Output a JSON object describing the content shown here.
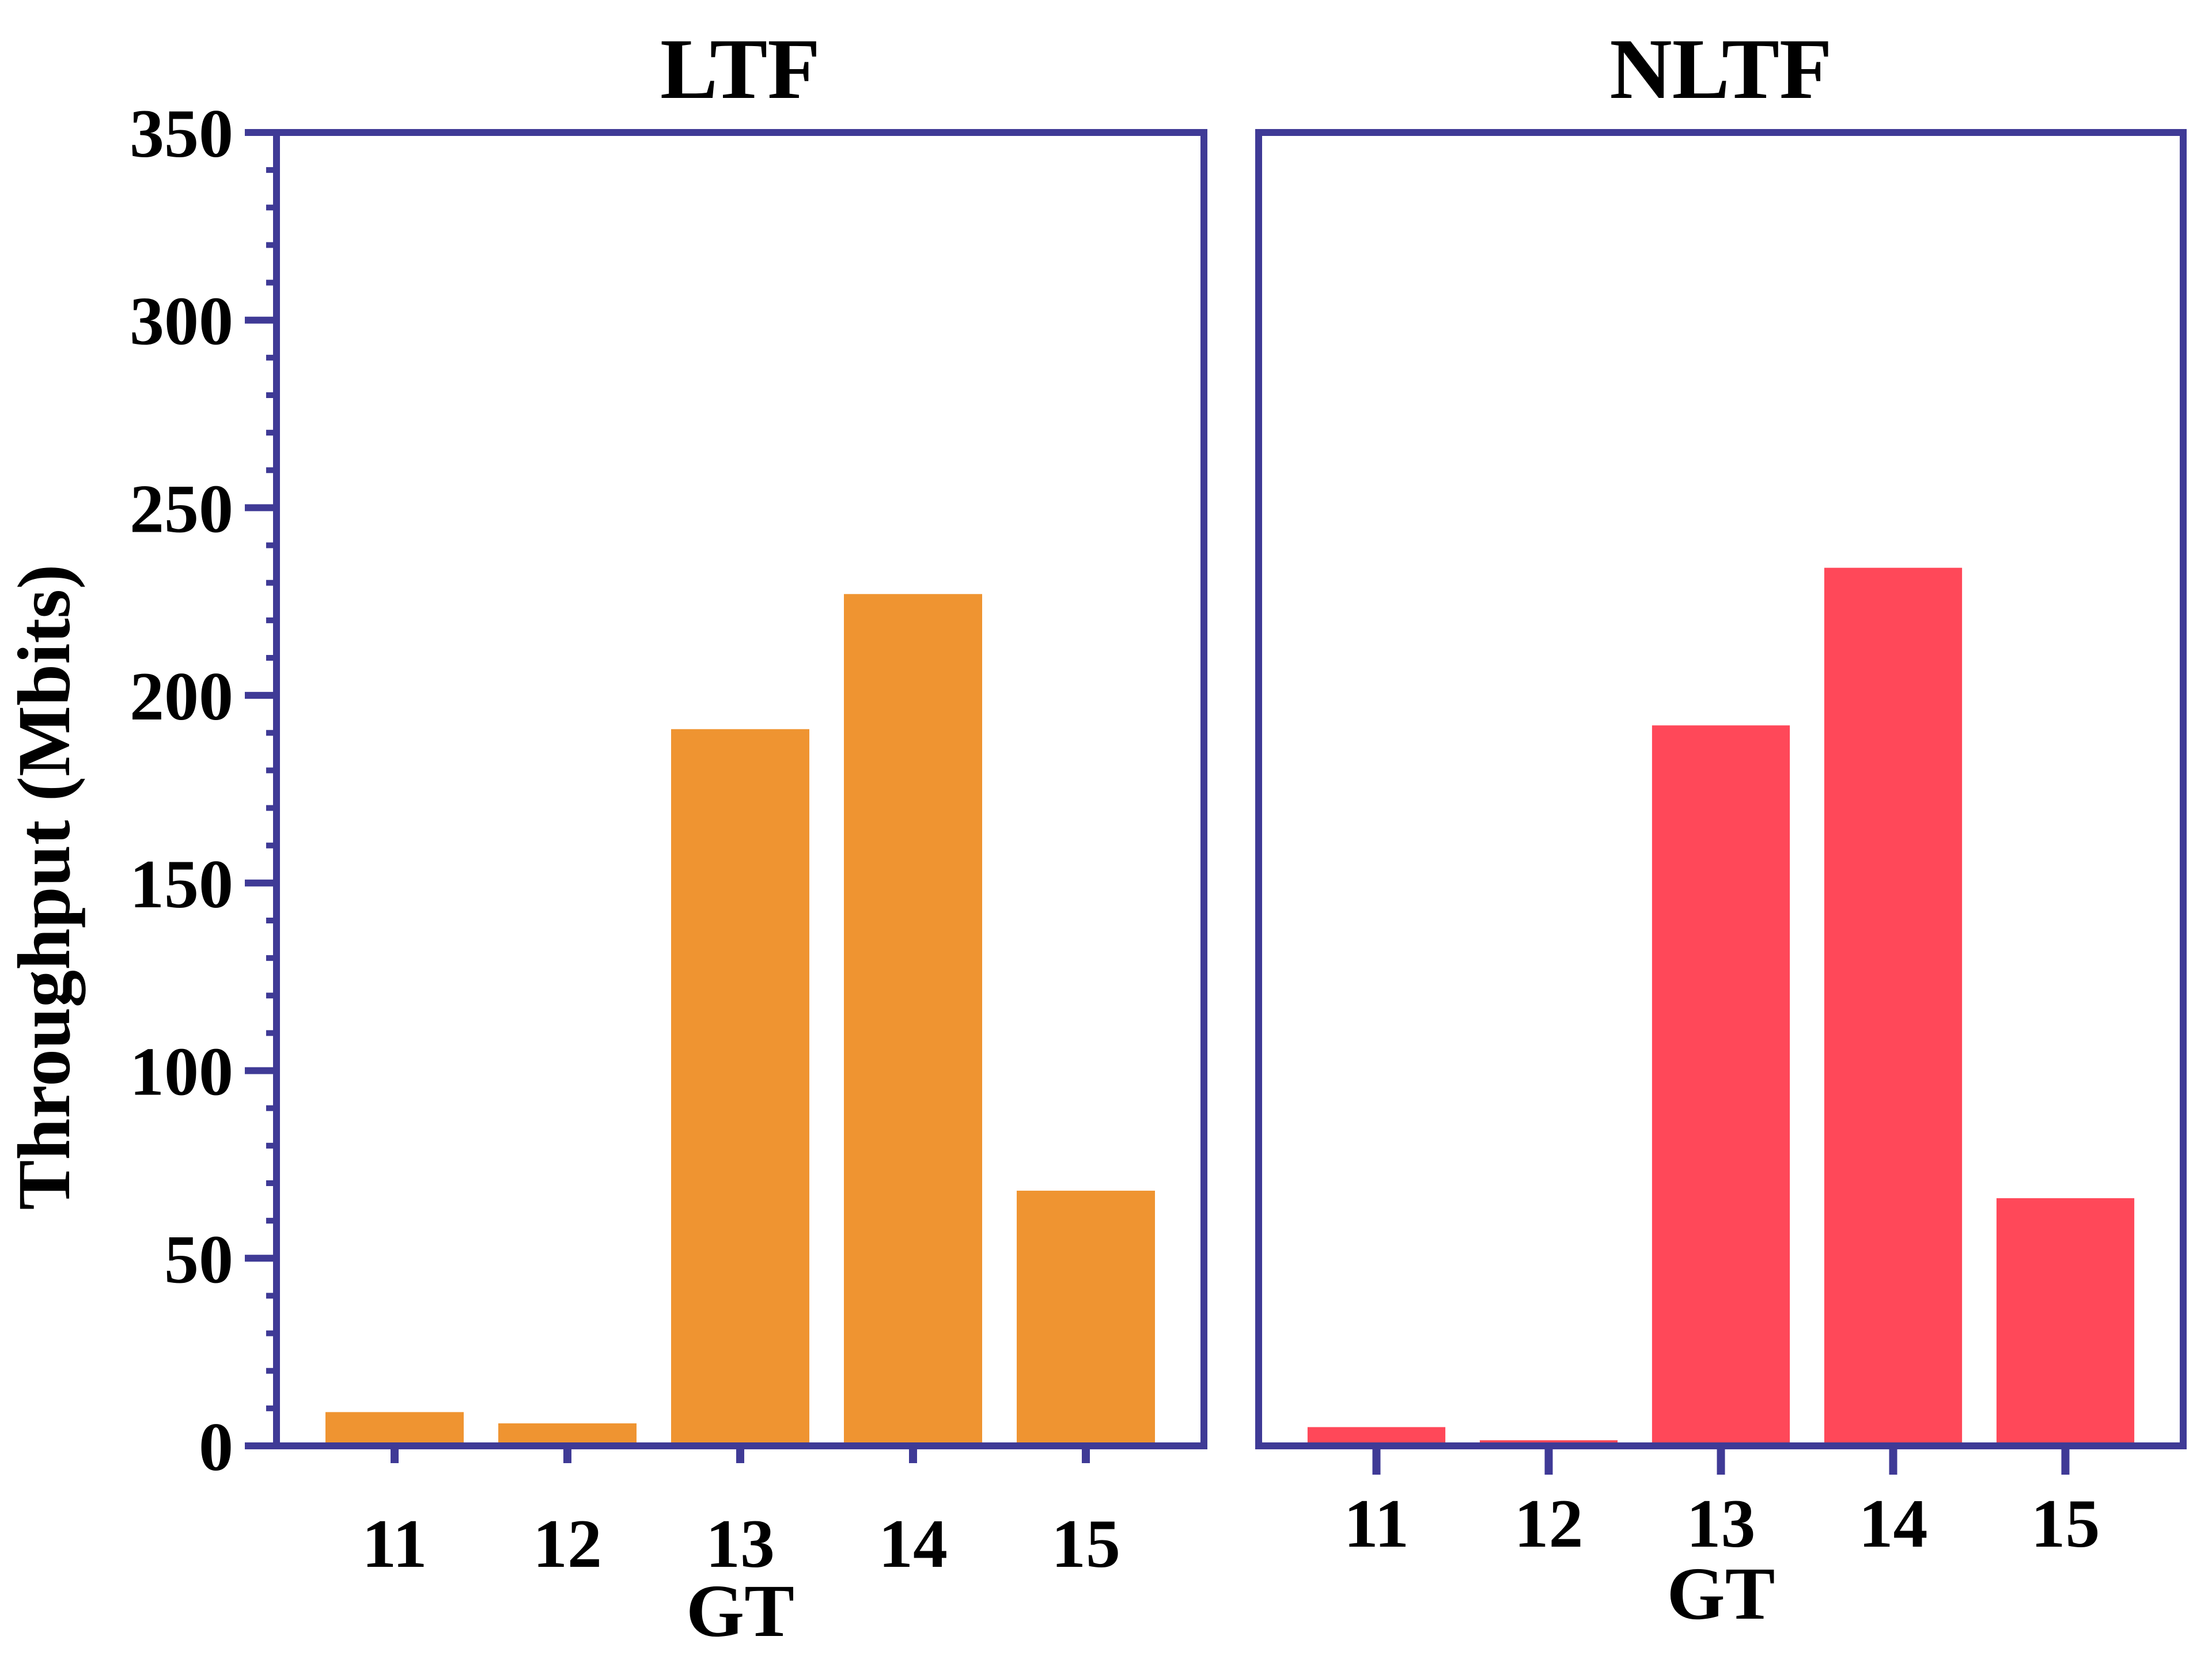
{
  "chart_data": [
    {
      "type": "bar",
      "title": "LTF",
      "xlabel": "GT",
      "ylabel": "Throughput (Mbits)",
      "categories": [
        "11",
        "12",
        "13",
        "14",
        "15"
      ],
      "values": [
        9,
        6,
        191,
        227,
        68
      ],
      "ylim": [
        0,
        350
      ],
      "yticks": [
        "0",
        "50",
        "100",
        "150",
        "200",
        "250",
        "300",
        "350"
      ],
      "grid": false,
      "bar_color": "#EF9431"
    },
    {
      "type": "bar",
      "title": "NLTF",
      "xlabel": "GT",
      "ylabel": "",
      "categories": [
        "11",
        "12",
        "13",
        "14",
        "15"
      ],
      "values": [
        5,
        1.5,
        192,
        234,
        66
      ],
      "ylim": [
        0,
        350
      ],
      "grid": false,
      "bar_color": "#FF4859"
    }
  ],
  "colors": {
    "axis": "#3F3A96"
  }
}
